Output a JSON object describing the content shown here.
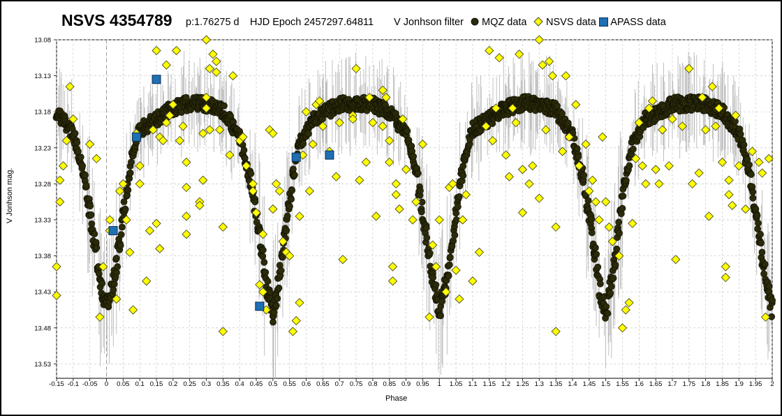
{
  "header": {
    "star_name": "NSVS 4354789",
    "period_text": "p:1.76275 d",
    "epoch_text": "HJD Epoch 2457297.64811",
    "filter_text": "V Jonhson filter"
  },
  "legend": [
    {
      "label": "MQZ data",
      "marker": "circle",
      "color": "#2b2a0a"
    },
    {
      "label": "NSVS data",
      "marker": "diamond",
      "color": "#ffff00"
    },
    {
      "label": "APASS data",
      "marker": "square",
      "color": "#1f6fb2"
    }
  ],
  "chart_data": {
    "type": "scatter",
    "title": "NSVS 4354789",
    "xlabel": "Phase",
    "ylabel": "V Jonhson mag.",
    "xlim": [
      -0.15,
      2.0
    ],
    "ylim": [
      13.08,
      13.55
    ],
    "y_inverted": true,
    "x_ticks": [
      "-0.15",
      "-0.1",
      "-0.05",
      "0",
      "0.05",
      "0.1",
      "0.15",
      "0.2",
      "0.25",
      "0.3",
      "0.35",
      "0.4",
      "0.45",
      "0.5",
      "0.55",
      "0.6",
      "0.65",
      "0.7",
      "0.75",
      "0.8",
      "0.85",
      "0.9",
      "0.95",
      "1",
      "1.05",
      "1.1",
      "1.15",
      "1.2",
      "1.25",
      "1.3",
      "1.35",
      "1.4",
      "1.45",
      "1.5",
      "1.55",
      "1.6",
      "1.65",
      "1.7",
      "1.75",
      "1.8",
      "1.85",
      "1.9",
      "1.95",
      "2"
    ],
    "y_ticks": [
      "13.08",
      "13.13",
      "13.18",
      "13.23",
      "13.28",
      "13.33",
      "13.38",
      "13.43",
      "13.48",
      "13.53"
    ],
    "grid": true,
    "series": [
      {
        "name": "MQZ data",
        "marker": "circle",
        "light_curve_points": [
          [
            0.0,
            13.455
          ],
          [
            0.02,
            13.42
          ],
          [
            0.04,
            13.36
          ],
          [
            0.06,
            13.29
          ],
          [
            0.08,
            13.235
          ],
          [
            0.1,
            13.205
          ],
          [
            0.15,
            13.19
          ],
          [
            0.2,
            13.175
          ],
          [
            0.25,
            13.168
          ],
          [
            0.3,
            13.17
          ],
          [
            0.35,
            13.178
          ],
          [
            0.4,
            13.215
          ],
          [
            0.43,
            13.27
          ],
          [
            0.46,
            13.35
          ],
          [
            0.48,
            13.42
          ],
          [
            0.5,
            13.46
          ],
          [
            0.52,
            13.41
          ],
          [
            0.54,
            13.34
          ],
          [
            0.56,
            13.27
          ],
          [
            0.58,
            13.225
          ],
          [
            0.62,
            13.19
          ],
          [
            0.7,
            13.17
          ],
          [
            0.75,
            13.168
          ],
          [
            0.8,
            13.17
          ],
          [
            0.85,
            13.18
          ],
          [
            0.9,
            13.21
          ],
          [
            0.93,
            13.26
          ],
          [
            0.96,
            13.35
          ],
          [
            0.98,
            13.41
          ],
          [
            1.0,
            13.455
          ]
        ],
        "error_bar_halfwidth_mag": 0.06
      },
      {
        "name": "NSVS data",
        "marker": "diamond",
        "points": [
          [
            -0.15,
            13.395
          ],
          [
            -0.15,
            13.435
          ],
          [
            -0.14,
            13.275
          ],
          [
            -0.14,
            13.305
          ],
          [
            -0.13,
            13.255
          ],
          [
            -0.12,
            13.22
          ],
          [
            -0.11,
            13.145
          ],
          [
            -0.1,
            13.19
          ],
          [
            -0.05,
            13.225
          ],
          [
            -0.03,
            13.245
          ],
          [
            -0.02,
            13.465
          ],
          [
            -0.01,
            13.395
          ],
          [
            0.01,
            13.33
          ],
          [
            0.01,
            13.345
          ],
          [
            0.03,
            13.44
          ],
          [
            0.04,
            13.29
          ],
          [
            0.05,
            13.28
          ],
          [
            0.06,
            13.33
          ],
          [
            0.07,
            13.375
          ],
          [
            0.08,
            13.455
          ],
          [
            0.09,
            13.21
          ],
          [
            0.1,
            13.255
          ],
          [
            0.1,
            13.28
          ],
          [
            0.12,
            13.415
          ],
          [
            0.13,
            13.345
          ],
          [
            0.14,
            13.205
          ],
          [
            0.15,
            13.095
          ],
          [
            0.15,
            13.335
          ],
          [
            0.16,
            13.215
          ],
          [
            0.16,
            13.37
          ],
          [
            0.17,
            13.22
          ],
          [
            0.18,
            13.115
          ],
          [
            0.18,
            13.195
          ],
          [
            0.19,
            13.185
          ],
          [
            0.2,
            13.17
          ],
          [
            0.21,
            13.095
          ],
          [
            0.22,
            13.22
          ],
          [
            0.23,
            13.2
          ],
          [
            0.24,
            13.25
          ],
          [
            0.24,
            13.285
          ],
          [
            0.24,
            13.325
          ],
          [
            0.24,
            13.35
          ],
          [
            0.28,
            13.305
          ],
          [
            0.28,
            13.31
          ],
          [
            0.29,
            13.21
          ],
          [
            0.29,
            13.275
          ],
          [
            0.3,
            13.16
          ],
          [
            0.3,
            13.175
          ],
          [
            0.3,
            13.08
          ],
          [
            0.31,
            13.12
          ],
          [
            0.31,
            13.205
          ],
          [
            0.32,
            13.1
          ],
          [
            0.33,
            13.125
          ],
          [
            0.33,
            13.11
          ],
          [
            0.34,
            13.205
          ],
          [
            0.35,
            13.34
          ],
          [
            0.35,
            13.485
          ],
          [
            0.37,
            13.24
          ],
          [
            0.38,
            13.13
          ],
          [
            0.4,
            13.22
          ],
          [
            0.41,
            13.215
          ],
          [
            0.42,
            13.255
          ],
          [
            0.44,
            13.28
          ],
          [
            0.44,
            13.29
          ],
          [
            0.45,
            13.32
          ],
          [
            0.46,
            13.42
          ],
          [
            0.47,
            13.35
          ],
          [
            0.47,
            13.43
          ],
          [
            0.48,
            13.455
          ],
          [
            0.49,
            13.205
          ],
          [
            0.5,
            13.21
          ],
          [
            0.5,
            13.315
          ],
          [
            0.51,
            13.28
          ],
          [
            0.52,
            13.29
          ],
          [
            0.53,
            13.36
          ],
          [
            0.54,
            13.375
          ],
          [
            0.55,
            13.38
          ],
          [
            0.56,
            13.485
          ],
          [
            0.57,
            13.47
          ],
          [
            0.58,
            13.325
          ],
          [
            0.58,
            13.445
          ],
          [
            0.59,
            13.24
          ],
          [
            0.6,
            13.18
          ],
          [
            0.61,
            13.29
          ],
          [
            0.62,
            13.225
          ],
          [
            0.63,
            13.17
          ],
          [
            0.64,
            13.165
          ],
          [
            0.65,
            13.2
          ],
          [
            0.67,
            13.235
          ],
          [
            0.69,
            13.27
          ],
          [
            0.7,
            13.195
          ],
          [
            0.71,
            13.385
          ],
          [
            0.74,
            13.185
          ],
          [
            0.74,
            13.19
          ],
          [
            0.75,
            13.12
          ],
          [
            0.76,
            13.275
          ],
          [
            0.78,
            13.25
          ],
          [
            0.79,
            13.16
          ],
          [
            0.8,
            13.195
          ],
          [
            0.81,
            13.325
          ],
          [
            0.83,
            13.15
          ],
          [
            0.83,
            13.2
          ],
          [
            0.84,
            13.16
          ],
          [
            0.85,
            13.22
          ],
          [
            0.85,
            13.25
          ],
          [
            0.86,
            13.395
          ],
          [
            0.86,
            13.415
          ],
          [
            0.87,
            13.28
          ],
          [
            0.87,
            13.295
          ],
          [
            0.88,
            13.315
          ],
          [
            0.89,
            13.19
          ],
          [
            0.9,
            13.26
          ],
          [
            0.92,
            13.33
          ],
          [
            0.93,
            13.305
          ],
          [
            0.95,
            13.225
          ],
          [
            0.97,
            13.465
          ],
          [
            0.98,
            13.365
          ],
          [
            0.99,
            13.395
          ],
          [
            1.0,
            13.33
          ],
          [
            1.02,
            13.43
          ],
          [
            1.03,
            13.285
          ],
          [
            1.04,
            13.28
          ],
          [
            1.05,
            13.4
          ],
          [
            1.06,
            13.44
          ],
          [
            1.07,
            13.33
          ],
          [
            1.08,
            13.295
          ],
          [
            1.1,
            13.415
          ],
          [
            1.12,
            13.375
          ],
          [
            1.14,
            13.2
          ],
          [
            1.15,
            13.095
          ],
          [
            1.16,
            13.22
          ],
          [
            1.17,
            13.175
          ],
          [
            1.18,
            13.105
          ],
          [
            1.2,
            13.24
          ],
          [
            1.21,
            13.27
          ],
          [
            1.22,
            13.175
          ],
          [
            1.23,
            13.195
          ],
          [
            1.24,
            13.1
          ],
          [
            1.25,
            13.26
          ],
          [
            1.25,
            13.32
          ],
          [
            1.27,
            13.28
          ],
          [
            1.28,
            13.255
          ],
          [
            1.3,
            13.3
          ],
          [
            1.3,
            13.08
          ],
          [
            1.31,
            13.115
          ],
          [
            1.32,
            13.205
          ],
          [
            1.33,
            13.11
          ],
          [
            1.34,
            13.13
          ],
          [
            1.35,
            13.34
          ],
          [
            1.35,
            13.485
          ],
          [
            1.37,
            13.235
          ],
          [
            1.38,
            13.13
          ],
          [
            1.39,
            13.215
          ],
          [
            1.41,
            13.17
          ],
          [
            1.42,
            13.255
          ],
          [
            1.44,
            13.225
          ],
          [
            1.45,
            13.29
          ],
          [
            1.46,
            13.275
          ],
          [
            1.47,
            13.305
          ],
          [
            1.48,
            13.33
          ],
          [
            1.49,
            13.215
          ],
          [
            1.5,
            13.305
          ],
          [
            1.51,
            13.34
          ],
          [
            1.52,
            13.36
          ],
          [
            1.54,
            13.38
          ],
          [
            1.55,
            13.48
          ],
          [
            1.56,
            13.455
          ],
          [
            1.57,
            13.445
          ],
          [
            1.58,
            13.335
          ],
          [
            1.59,
            13.245
          ],
          [
            1.6,
            13.195
          ],
          [
            1.61,
            13.255
          ],
          [
            1.62,
            13.28
          ],
          [
            1.63,
            13.175
          ],
          [
            1.64,
            13.165
          ],
          [
            1.65,
            13.26
          ],
          [
            1.66,
            13.28
          ],
          [
            1.67,
            13.205
          ],
          [
            1.69,
            13.255
          ],
          [
            1.7,
            13.19
          ],
          [
            1.71,
            13.385
          ],
          [
            1.73,
            13.2
          ],
          [
            1.75,
            13.12
          ],
          [
            1.76,
            13.28
          ],
          [
            1.78,
            13.265
          ],
          [
            1.79,
            13.16
          ],
          [
            1.8,
            13.205
          ],
          [
            1.81,
            13.325
          ],
          [
            1.82,
            13.145
          ],
          [
            1.83,
            13.2
          ],
          [
            1.84,
            13.175
          ],
          [
            1.85,
            13.25
          ],
          [
            1.86,
            13.395
          ],
          [
            1.86,
            13.41
          ],
          [
            1.87,
            13.275
          ],
          [
            1.87,
            13.295
          ],
          [
            1.88,
            13.31
          ],
          [
            1.89,
            13.185
          ],
          [
            1.9,
            13.255
          ],
          [
            1.92,
            13.315
          ],
          [
            1.94,
            13.235
          ],
          [
            1.96,
            13.25
          ],
          [
            1.97,
            13.265
          ],
          [
            1.98,
            13.465
          ],
          [
            1.99,
            13.245
          ]
        ]
      },
      {
        "name": "APASS data",
        "marker": "square",
        "points": [
          [
            0.02,
            13.345
          ],
          [
            0.09,
            13.215
          ],
          [
            0.15,
            13.135
          ],
          [
            0.46,
            13.45
          ],
          [
            0.57,
            13.243
          ],
          [
            0.67,
            13.24
          ]
        ]
      }
    ]
  }
}
